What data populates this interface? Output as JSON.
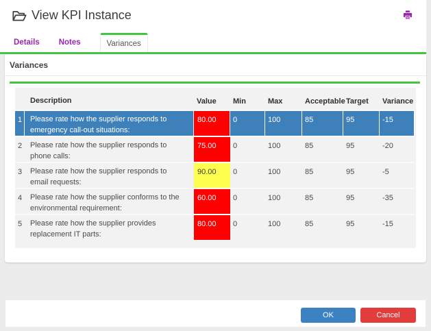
{
  "window": {
    "title": "View KPI Instance"
  },
  "icons": {
    "title_icon": "folder-open-icon",
    "print_icon": "printer-icon"
  },
  "tabs": [
    {
      "label": "Details",
      "active": false
    },
    {
      "label": "Notes",
      "active": false
    },
    {
      "label": "Variances",
      "active": true
    }
  ],
  "section": {
    "title": "Variances"
  },
  "table": {
    "columns": [
      "Description",
      "Value",
      "Min",
      "Max",
      "Acceptable",
      "Target",
      "Variance"
    ],
    "rows": [
      {
        "num": "1",
        "description": "Please rate how the supplier responds to emergency call-out situations:",
        "value": "80.00",
        "value_color": "red",
        "min": "0",
        "max": "100",
        "acceptable": "85",
        "target": "95",
        "variance": "-15",
        "selected": true
      },
      {
        "num": "2",
        "description": "Please rate how the supplier responds to phone calls:",
        "value": "75.00",
        "value_color": "red",
        "min": "0",
        "max": "100",
        "acceptable": "85",
        "target": "95",
        "variance": "-20",
        "selected": false
      },
      {
        "num": "3",
        "description": "Please rate how the supplier responds to email requests:",
        "value": "90.00",
        "value_color": "yellow",
        "min": "0",
        "max": "100",
        "acceptable": "85",
        "target": "95",
        "variance": "-5",
        "selected": false
      },
      {
        "num": "4",
        "description": "Please rate how the supplier conforms to the environmental requirement:",
        "value": "60.00",
        "value_color": "red",
        "min": "0",
        "max": "100",
        "acceptable": "85",
        "target": "95",
        "variance": "-35",
        "selected": false
      },
      {
        "num": "5",
        "description": "Please rate how the supplier provides replacement IT parts:",
        "value": "80.00",
        "value_color": "red",
        "min": "0",
        "max": "100",
        "acceptable": "85",
        "target": "95",
        "variance": "-15",
        "selected": false
      }
    ]
  },
  "buttons": {
    "ok": "OK",
    "cancel": "Cancel"
  },
  "colors": {
    "accent_green": "#42c642",
    "link_purple": "#9b27af",
    "selected_row_blue": "#3e80ba",
    "value_red": "#ff0000",
    "value_yellow": "#feff4d",
    "ok_blue": "#3c81c2",
    "cancel_red": "#e23c3c"
  }
}
